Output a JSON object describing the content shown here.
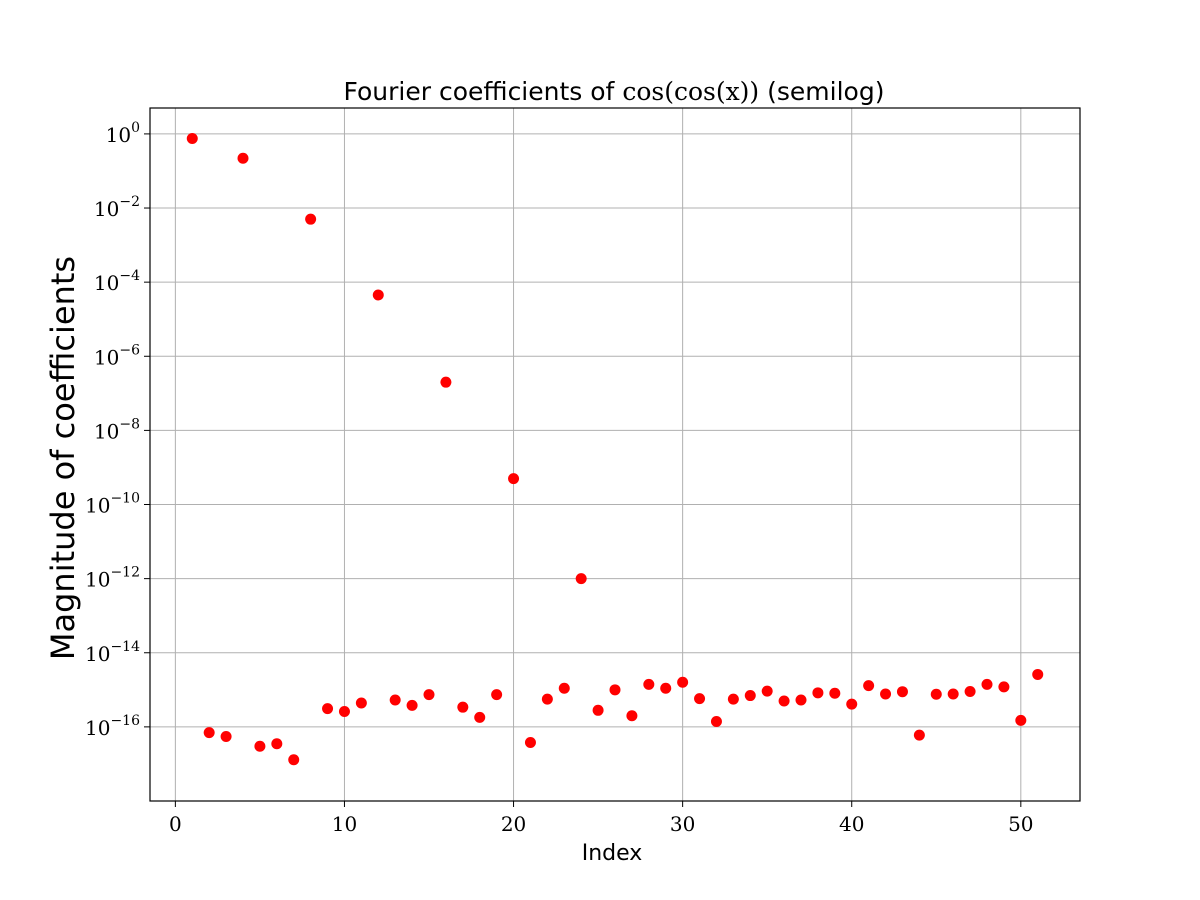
{
  "chart_data": {
    "type": "scatter",
    "title": "Fourier coefficients of cos(cos(x)) (semilog)",
    "xlabel": "Index",
    "ylabel": "Magnitude of coefficients",
    "yscale": "log",
    "xlim": [
      -1.5,
      53.5
    ],
    "ylim": [
      1e-18,
      5
    ],
    "xticks": [
      0,
      10,
      20,
      30,
      40,
      50
    ],
    "xtick_labels": [
      "0",
      "10",
      "20",
      "30",
      "40",
      "50"
    ],
    "yticks": [
      1,
      0.01,
      0.0001,
      1e-06,
      1e-08,
      1e-10,
      1e-12,
      1e-14,
      1e-16
    ],
    "ytick_labels": [
      "10^0",
      "10^-2",
      "10^-4",
      "10^-6",
      "10^-8",
      "10^-10",
      "10^-12",
      "10^-14",
      "10^-16"
    ],
    "grid": true,
    "marker_color": "#ff0000",
    "x": [
      1,
      2,
      3,
      4,
      5,
      6,
      7,
      8,
      9,
      10,
      11,
      12,
      13,
      14,
      15,
      16,
      17,
      18,
      19,
      20,
      21,
      22,
      23,
      24,
      25,
      26,
      27,
      28,
      29,
      30,
      31,
      32,
      33,
      34,
      35,
      36,
      37,
      38,
      39,
      40,
      41,
      42,
      43,
      44,
      45,
      46,
      47,
      48,
      49,
      50,
      51
    ],
    "y": [
      0.75,
      7e-17,
      5.5e-17,
      0.22,
      3e-17,
      3.5e-17,
      1.3e-17,
      0.005,
      3.1e-16,
      2.6e-16,
      4.4e-16,
      4.5e-05,
      5.3e-16,
      3.8e-16,
      7.4e-16,
      2e-07,
      3.4e-16,
      1.8e-16,
      7.4e-16,
      5e-10,
      3.8e-17,
      5.6e-16,
      1.1e-15,
      1e-12,
      2.8e-16,
      1e-15,
      2e-16,
      1.4e-15,
      1.1e-15,
      1.6e-15,
      5.8e-16,
      1.4e-16,
      5.6e-16,
      7e-16,
      9.2e-16,
      5e-16,
      5.3e-16,
      8.3e-16,
      8.1e-16,
      4.1e-16,
      1.3e-15,
      7.7e-16,
      8.9e-16,
      6e-17,
      7.6e-16,
      7.7e-16,
      9e-16,
      1.4e-15,
      1.2e-15,
      1.5e-16,
      2.6e-15
    ]
  }
}
